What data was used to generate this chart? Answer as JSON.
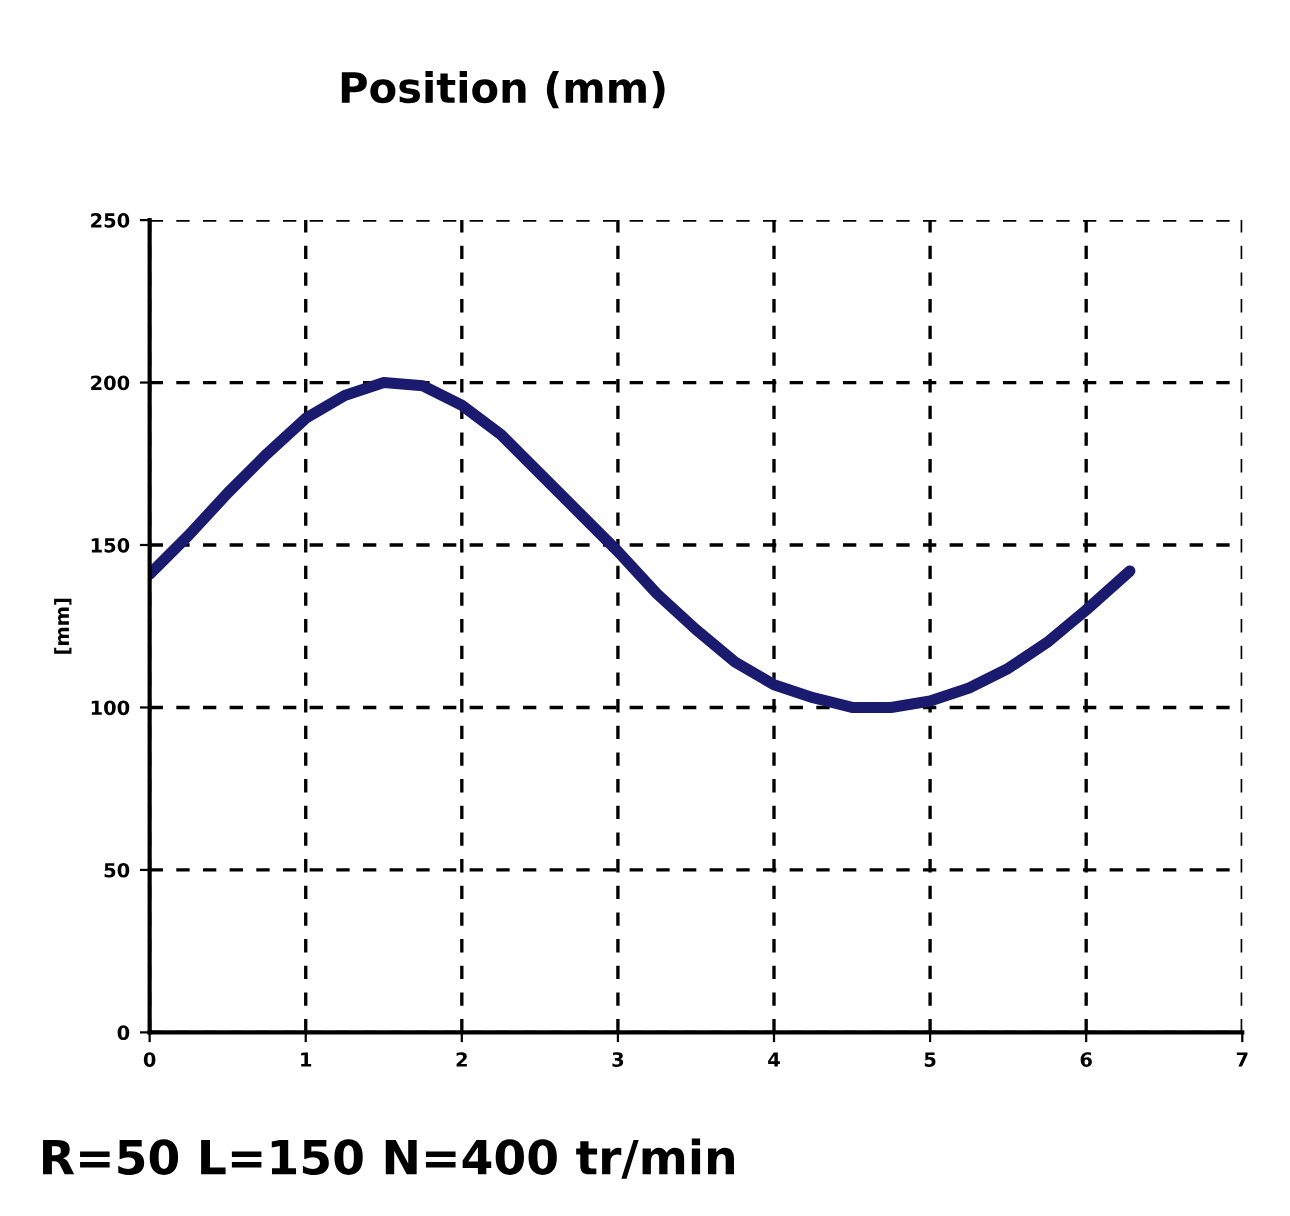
{
  "chart_data": {
    "type": "line",
    "title": "Position (mm)",
    "ylabel": "[mm]",
    "annotations": [
      "R=50 L=150 N=400 tr/min"
    ],
    "x": [
      0,
      0.25,
      0.5,
      0.75,
      1,
      1.25,
      1.5,
      1.75,
      2,
      2.25,
      2.5,
      2.75,
      3,
      3.25,
      3.5,
      3.75,
      4,
      4.25,
      4.5,
      4.75,
      5,
      5.25,
      5.5,
      5.75,
      6,
      6.28
    ],
    "series": [
      {
        "color": "#1a1a6e",
        "values": [
          141,
          153,
          166,
          178,
          189,
          196,
          200,
          199,
          193,
          184,
          172,
          160,
          148,
          135,
          124,
          114,
          107,
          103,
          100,
          100,
          102,
          106,
          112,
          120,
          130,
          142
        ]
      }
    ],
    "xlim": [
      0,
      7
    ],
    "xticks": [
      0,
      1,
      2,
      3,
      4,
      5,
      6,
      7
    ],
    "ylim": [
      0,
      250
    ],
    "yticks": [
      0,
      50,
      100,
      150,
      200,
      250
    ],
    "grid": true,
    "marker": "none",
    "line_style": "solid"
  }
}
